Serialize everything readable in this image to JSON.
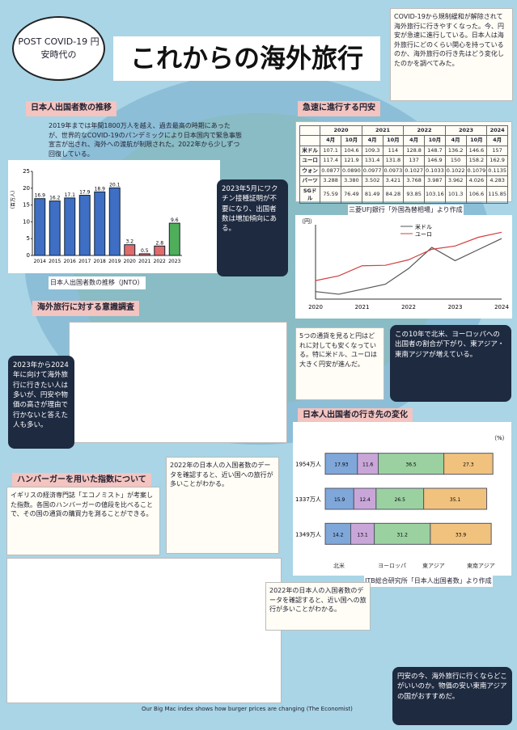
{
  "header": {
    "bubble": "POST COVID-19 円安時代の",
    "title": "これからの海外旅行"
  },
  "intro": "COVID-19から規制緩和が解除されて海外旅行に行きやすくなった。今、円安が急速に進行している。日本人は海外旅行にどのくらい関心を持っているのか、海外旅行の行き先はどう変化したのかを調べてみた。",
  "sections": [
    {
      "title": "日本人出国者数の推移",
      "text": "2019年までは年間1800万人を越え、過去最高の時期にあったが、世界的なCOVID-19のパンデミックにより日本国内で緊急事態宣言が出され、海外への渡航が制限された。2022年から少しずつ回復している。"
    },
    {
      "title": "急速に進行する円安",
      "text": ""
    },
    {
      "title": "海外旅行に対する意識調査",
      "text": "2023年から2024年に向けて海外旅行に行きたい人は多いが、円安や物価の高さが理由で行かないと答えた人も多い。"
    },
    {
      "title": "日本人出国者の行き先の変化",
      "text": ""
    },
    {
      "title": "ハンバーガーを用いた指数について",
      "text": "イギリスの経済専門誌「エコノミスト」が考案した指数。各国のハンバーガーの値段を比べることで、その国の通貨の購買力を測ることができる。"
    }
  ],
  "notes": [
    "2023年5月にワクチン接種証明が不要になり、出国者数は増加傾向にある。",
    "5つの通貨を見ると円はどれに対しても安くなっている。特に米ドル、ユーロは大きく円安が進んだ。",
    "この10年で北米、ヨーロッパへの出国者の割合が下がり、東アジア・東南アジアが増えている。",
    "2022年の日本人の入国者数のデータを確認すると、近い国への旅行が多いことがわかる。",
    "円安の今、海外旅行に行くならどこがいいのか。物価の安い東南アジアの国がおすすめだ。"
  ],
  "captions": [
    "日本人出国者数の推移（JNTO）",
    "三菱UFJ銀行「外国為替相場」より作成",
    "JTB総合研究所「日本人出国者数」より作成",
    "Our Big Mac index shows how burger prices are changing (The Economist)"
  ],
  "table": {
    "years": [
      "2020",
      "2021",
      "2022",
      "2023",
      "2024"
    ],
    "months": [
      "4月",
      "10月",
      "4月",
      "10月",
      "4月",
      "10月",
      "4月",
      "10月",
      "4月"
    ],
    "rows": [
      {
        "name": "米ドル",
        "values": [
          "107.1",
          "104.6",
          "109.3",
          "114",
          "128.8",
          "148.7",
          "136.2",
          "146.6",
          "157"
        ]
      },
      {
        "name": "ユーロ",
        "values": [
          "117.4",
          "121.9",
          "131.4",
          "131.8",
          "137",
          "146.9",
          "150",
          "158.2",
          "162.9"
        ]
      },
      {
        "name": "ウォン",
        "values": [
          "0.0877",
          "0.0890",
          "0.0977",
          "0.0973",
          "0.1027",
          "0.1033",
          "0.1022",
          "0.1079",
          "0.1135"
        ]
      },
      {
        "name": "バーツ",
        "values": [
          "3.288",
          "3.380",
          "3.502",
          "3.421",
          "3.768",
          "3.987",
          "3.962",
          "4.026",
          "4.283"
        ]
      },
      {
        "name": "SGドル",
        "values": [
          "75.59",
          "76.49",
          "81.49",
          "84.28",
          "93.85",
          "103.16",
          "101.3",
          "106.6",
          "115.85"
        ]
      }
    ]
  },
  "chart_data": [
    {
      "type": "bar",
      "y_label": "（百万人）",
      "categories": [
        "2014",
        "2015",
        "2016",
        "2017",
        "2018",
        "2019",
        "2020",
        "2021",
        "2022",
        "2023"
      ],
      "values": [
        16.9,
        16.2,
        17.1,
        17.9,
        18.9,
        20.1,
        3.2,
        0.5,
        2.8,
        9.6
      ],
      "colors": [
        "#3f6fc4",
        "#3f6fc4",
        "#3f6fc4",
        "#3f6fc4",
        "#3f6fc4",
        "#3f6fc4",
        "#e06b6b",
        "#e06b6b",
        "#e06b6b",
        "#4fae5a"
      ],
      "ylim": [
        0,
        25
      ],
      "yticks": [
        0,
        5,
        10,
        15,
        20,
        25
      ]
    },
    {
      "type": "line",
      "y_label": "（円）",
      "categories": [
        "2020",
        null,
        "2021",
        null,
        "2022",
        null,
        "2023",
        null,
        "2024"
      ],
      "series": [
        {
          "name": "米ドル",
          "color": "#555",
          "values": [
            107.1,
            104.6,
            109.3,
            114,
            128.8,
            148.7,
            136.2,
            146.6,
            157
          ]
        },
        {
          "name": "ユーロ",
          "color": "#d04040",
          "values": [
            117.4,
            121.9,
            131.4,
            131.8,
            137,
            146.9,
            150,
            158.2,
            162.9
          ]
        }
      ],
      "ylim": [
        100,
        170
      ]
    },
    {
      "type": "stacked",
      "y_label": "（%）",
      "categories": [
        "1954万人",
        "1337万人",
        "1349万人"
      ],
      "series": [
        {
          "name": "北米",
          "color": "#7fa7d9",
          "values": [
            17.93,
            15.9,
            14.2
          ]
        },
        {
          "name": "ヨーロッパ",
          "color": "#c9a6d8",
          "values": [
            11.6,
            12.4,
            13.1
          ]
        },
        {
          "name": "東アジア",
          "color": "#9bd1a1",
          "values": [
            36.5,
            26.5,
            31.2
          ]
        },
        {
          "name": "東南アジア",
          "color": "#f1c27d",
          "values": [
            27.3,
            35.1,
            33.9
          ]
        }
      ],
      "xlim": [
        0,
        100
      ]
    }
  ]
}
